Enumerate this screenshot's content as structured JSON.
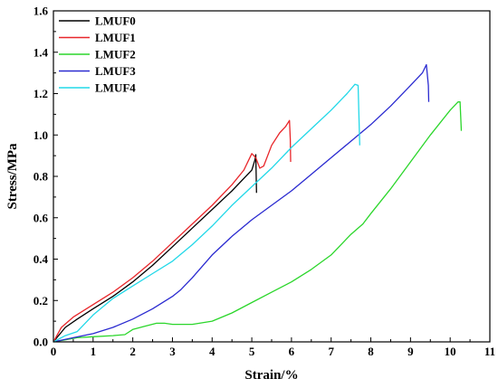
{
  "chart_data": {
    "type": "line",
    "title": "",
    "xlabel": "Strain/%",
    "ylabel": "Stress/MPa",
    "xlim": [
      0,
      11
    ],
    "ylim": [
      0,
      1.6
    ],
    "xticks": [
      0,
      1,
      2,
      3,
      4,
      5,
      6,
      7,
      8,
      9,
      10,
      11
    ],
    "yticks": [
      0.0,
      0.2,
      0.4,
      0.6,
      0.8,
      1.0,
      1.2,
      1.4,
      1.6
    ],
    "xtick_labels": [
      "0",
      "1",
      "2",
      "3",
      "4",
      "5",
      "6",
      "7",
      "8",
      "9",
      "10",
      "11"
    ],
    "ytick_labels": [
      "0.0",
      "0.2",
      "0.4",
      "0.6",
      "0.8",
      "1.0",
      "1.2",
      "1.4",
      "1.6"
    ],
    "grid": false,
    "legend_position": "top-left",
    "series": [
      {
        "name": "LMUF0",
        "color": "#000000",
        "x": [
          0,
          0.3,
          0.6,
          1.0,
          1.5,
          2.0,
          2.5,
          3.0,
          3.5,
          4.0,
          4.5,
          5.0,
          5.08,
          5.1,
          5.12
        ],
        "y": [
          0,
          0.07,
          0.11,
          0.16,
          0.22,
          0.29,
          0.37,
          0.46,
          0.55,
          0.64,
          0.73,
          0.83,
          0.88,
          0.905,
          0.72
        ]
      },
      {
        "name": "LMUF1",
        "color": "#e8262a",
        "x": [
          0,
          0.2,
          0.5,
          1.0,
          1.5,
          2.0,
          2.5,
          3.0,
          3.5,
          4.0,
          4.5,
          4.8,
          5.0,
          5.1,
          5.2,
          5.3,
          5.5,
          5.7,
          5.85,
          5.95,
          5.97,
          5.98
        ],
        "y": [
          0,
          0.07,
          0.12,
          0.18,
          0.24,
          0.31,
          0.39,
          0.48,
          0.57,
          0.66,
          0.76,
          0.83,
          0.91,
          0.89,
          0.84,
          0.85,
          0.95,
          1.01,
          1.04,
          1.07,
          0.98,
          0.87
        ]
      },
      {
        "name": "LMUF2",
        "color": "#2bd62b",
        "x": [
          0,
          0.3,
          0.6,
          1.0,
          1.5,
          1.8,
          2.0,
          2.3,
          2.6,
          2.8,
          3.0,
          3.5,
          4.0,
          4.5,
          5.0,
          5.5,
          6.0,
          6.5,
          7.0,
          7.5,
          7.8,
          8.0,
          8.5,
          9.0,
          9.5,
          10.0,
          10.2,
          10.25,
          10.28
        ],
        "y": [
          0,
          0.01,
          0.02,
          0.025,
          0.03,
          0.035,
          0.06,
          0.075,
          0.09,
          0.09,
          0.085,
          0.085,
          0.1,
          0.14,
          0.19,
          0.24,
          0.29,
          0.35,
          0.42,
          0.52,
          0.57,
          0.62,
          0.74,
          0.87,
          1.0,
          1.12,
          1.16,
          1.16,
          1.02
        ]
      },
      {
        "name": "LMUF3",
        "color": "#2a2ad0",
        "x": [
          0,
          0.5,
          1.0,
          1.5,
          2.0,
          2.5,
          3.0,
          3.2,
          3.5,
          4.0,
          4.5,
          5.0,
          5.5,
          6.0,
          6.5,
          7.0,
          7.5,
          8.0,
          8.5,
          9.0,
          9.3,
          9.4,
          9.45,
          9.46
        ],
        "y": [
          0,
          0.02,
          0.04,
          0.07,
          0.11,
          0.16,
          0.22,
          0.25,
          0.31,
          0.42,
          0.51,
          0.59,
          0.66,
          0.73,
          0.81,
          0.89,
          0.97,
          1.05,
          1.14,
          1.24,
          1.3,
          1.34,
          1.24,
          1.16
        ]
      },
      {
        "name": "LMUF4",
        "color": "#22d8e8",
        "x": [
          0,
          0.3,
          0.6,
          1.0,
          1.5,
          2.0,
          2.5,
          3.0,
          3.5,
          4.0,
          4.5,
          5.0,
          5.5,
          6.0,
          6.5,
          7.0,
          7.4,
          7.6,
          7.68,
          7.72
        ],
        "y": [
          0,
          0.03,
          0.05,
          0.13,
          0.21,
          0.27,
          0.33,
          0.39,
          0.47,
          0.56,
          0.66,
          0.75,
          0.84,
          0.94,
          1.03,
          1.12,
          1.2,
          1.245,
          1.24,
          0.95
        ]
      }
    ]
  }
}
